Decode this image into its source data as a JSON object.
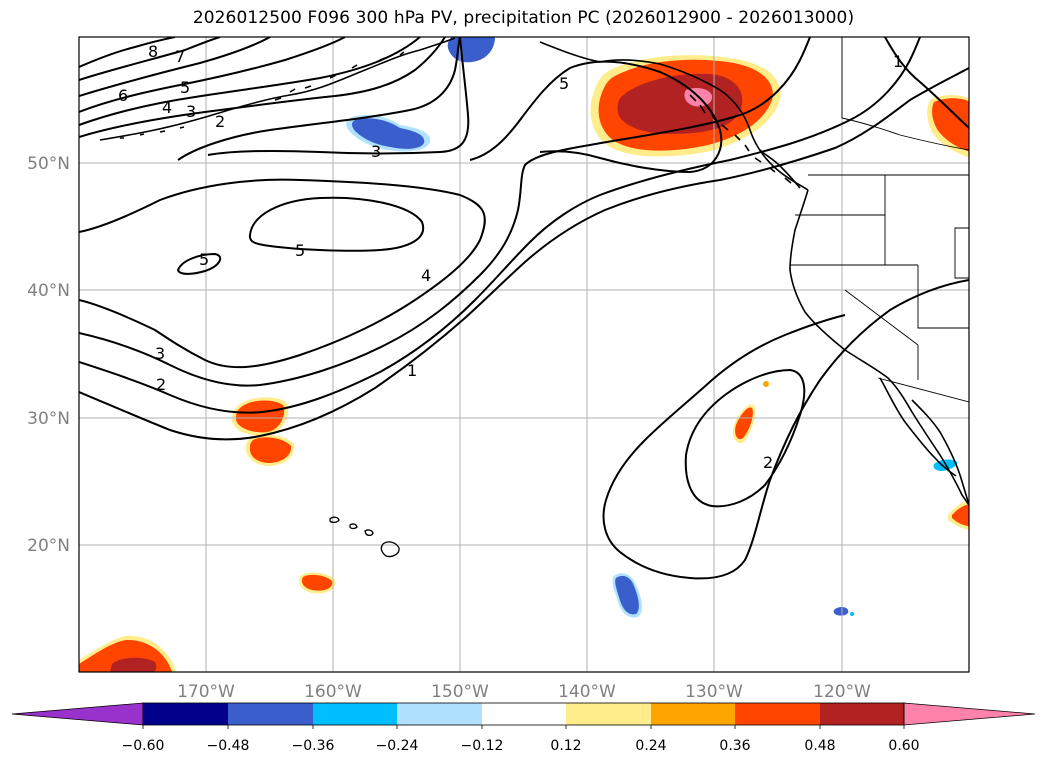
{
  "title": "2026012500 F096 300 hPa PV, precipitation PC (2026012900 - 2026013000)",
  "map": {
    "lat_labels": [
      "50°N",
      "40°N",
      "30°N",
      "20°N"
    ],
    "lon_labels": [
      "170°W",
      "160°W",
      "150°W",
      "140°W",
      "130°W",
      "120°W"
    ],
    "extent": {
      "lon_min": -180,
      "lon_max": -110,
      "lat_min": 10,
      "lat_max": 60
    },
    "pv_contour_labels": [
      "8",
      "7",
      "6",
      "5",
      "4",
      "3",
      "2",
      "3",
      "5",
      "5",
      "4",
      "3",
      "2",
      "1",
      "5",
      "1",
      "2"
    ]
  },
  "colorbar": {
    "tick_labels": [
      "−0.60",
      "−0.48",
      "−0.36",
      "−0.24",
      "−0.12",
      "0.12",
      "0.24",
      "0.36",
      "0.48",
      "0.60"
    ],
    "colors": {
      "below_min": "#9932cc",
      "c1": "#00008b",
      "c2": "#3a5fcd",
      "c3": "#00bfff",
      "c4": "#b0e2ff",
      "c5": "#ffffff",
      "c6": "#ffec8b",
      "c7": "#ffa500",
      "c8": "#ff4500",
      "c9": "#b22222",
      "above_max": "#ff82ab"
    }
  },
  "colors": {
    "grid": "#b0b0b0",
    "contour": "#000000",
    "coast": "#000000"
  }
}
